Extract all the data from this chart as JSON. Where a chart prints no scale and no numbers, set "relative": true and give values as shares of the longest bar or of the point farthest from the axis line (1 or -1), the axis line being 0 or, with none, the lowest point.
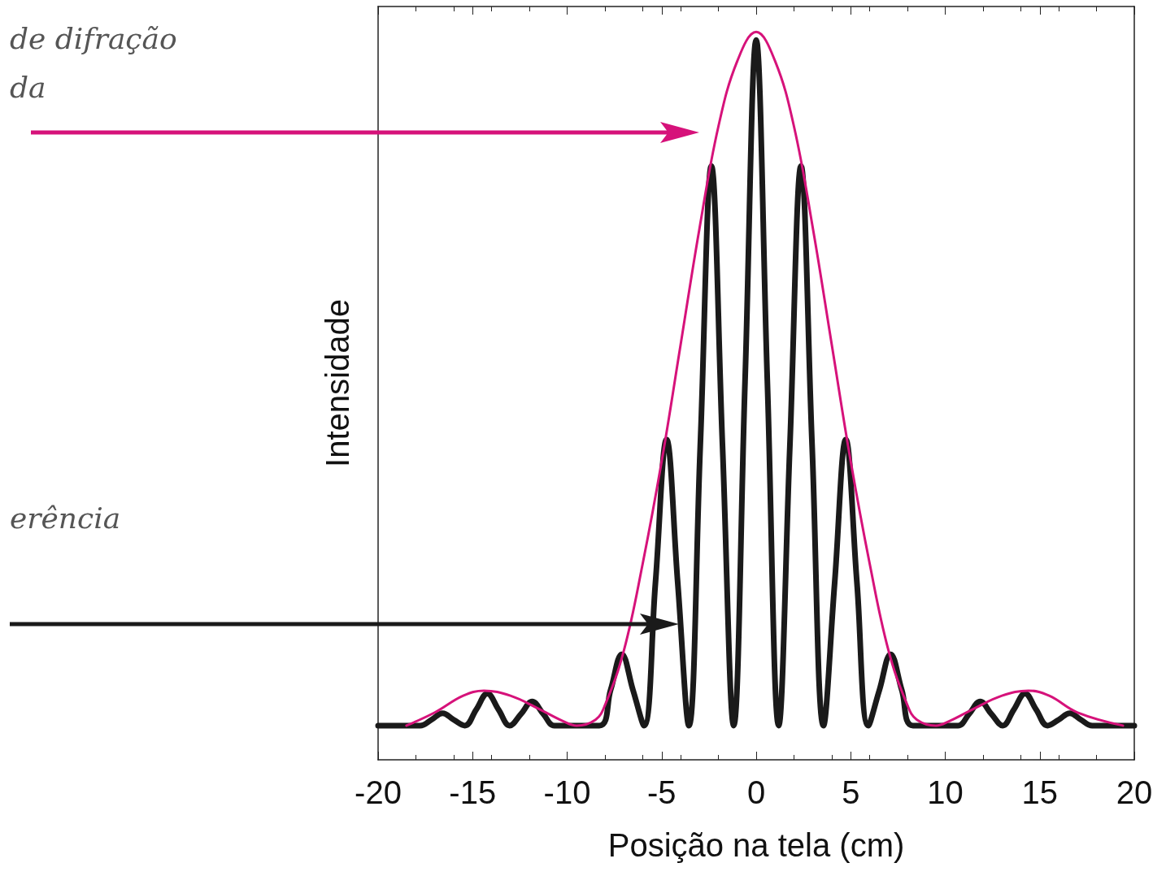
{
  "chart_data": {
    "type": "line",
    "relative": true,
    "xlabel": "Posição na tela (cm)",
    "ylabel": "Intensidade",
    "xlim": [
      -20,
      20
    ],
    "xticks": [
      -20,
      -15,
      -10,
      -5,
      0,
      5,
      10,
      15,
      20
    ],
    "tick_labels": "x",
    "marker": "none",
    "line_style": "solid",
    "annotations": [
      "de difração da",
      "erência"
    ],
    "series": [
      {
        "color": "#1a1a1a",
        "x": [
          -20,
          -17.78,
          -17.18,
          -16.59,
          -16.0,
          -15.41,
          -14.81,
          -14.22,
          -13.63,
          -13.04,
          -12.44,
          -11.85,
          -11.26,
          -10.67,
          -8.3,
          -7.7,
          -7.11,
          -6.52,
          -5.93,
          -5.33,
          -4.74,
          -4.15,
          -3.56,
          -2.96,
          -2.37,
          -1.78,
          -1.19,
          -0.59,
          0,
          0.59,
          1.19,
          1.78,
          2.37,
          2.96,
          3.56,
          4.15,
          4.74,
          5.33,
          5.93,
          6.52,
          7.11,
          7.7,
          8.3,
          10.67,
          11.26,
          11.85,
          12.44,
          13.04,
          13.63,
          14.22,
          14.81,
          15.41,
          16.0,
          16.59,
          17.18,
          17.78,
          20
        ],
        "values": [
          0.047,
          0.047,
          0.055,
          0.064,
          0.055,
          0.047,
          0.069,
          0.091,
          0.069,
          0.047,
          0.063,
          0.08,
          0.063,
          0.047,
          0.047,
          0.096,
          0.145,
          0.096,
          0.047,
          0.243,
          0.44,
          0.243,
          0.047,
          0.43,
          0.816,
          0.43,
          0.047,
          0.52,
          0.989,
          0.52,
          0.047,
          0.43,
          0.816,
          0.43,
          0.047,
          0.243,
          0.44,
          0.243,
          0.047,
          0.096,
          0.145,
          0.096,
          0.047,
          0.047,
          0.063,
          0.08,
          0.063,
          0.047,
          0.069,
          0.091,
          0.069,
          0.047,
          0.055,
          0.064,
          0.055,
          0.047,
          0.047
        ]
      },
      {
        "color": "#d6127a",
        "x": [
          -18.5,
          -17,
          -15.5,
          -14.4,
          -13,
          -11.5,
          -10.2,
          -9.5,
          -8.5,
          -8,
          -7,
          -6,
          -5,
          -4,
          -3,
          -2,
          -1,
          0,
          1,
          2,
          3,
          4,
          5,
          6,
          7,
          8,
          8.5,
          9.5,
          10.2,
          11.5,
          13,
          14.4,
          15.5,
          17,
          19.4
        ],
        "values": [
          0.047,
          0.065,
          0.088,
          0.095,
          0.088,
          0.07,
          0.053,
          0.047,
          0.055,
          0.075,
          0.15,
          0.27,
          0.41,
          0.57,
          0.73,
          0.87,
          0.96,
          1,
          0.96,
          0.87,
          0.73,
          0.57,
          0.41,
          0.27,
          0.15,
          0.075,
          0.055,
          0.047,
          0.053,
          0.07,
          0.088,
          0.095,
          0.088,
          0.065,
          0.047
        ]
      }
    ]
  }
}
